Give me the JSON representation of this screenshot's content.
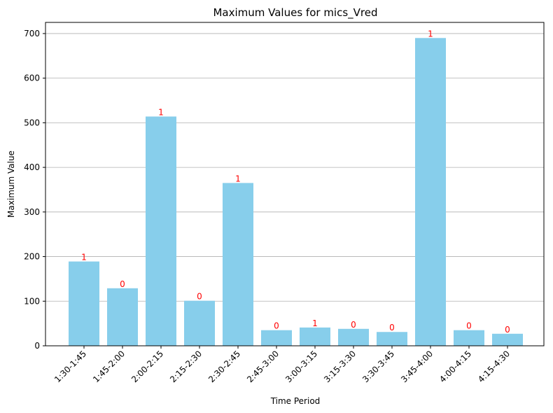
{
  "chart_data": {
    "type": "bar",
    "title": "Maximum Values for mics_Vred",
    "xlabel": "Time Period",
    "ylabel": "Maximum Value",
    "categories": [
      "1:30-1:45",
      "1:45-2:00",
      "2:00-2:15",
      "2:15-2:30",
      "2:30-2:45",
      "2:45-3:00",
      "3:00-3:15",
      "3:15-3:30",
      "3:30-3:45",
      "3:45-4:00",
      "4:00-4:15",
      "4:15-4:30"
    ],
    "values": [
      189,
      129,
      514,
      101,
      365,
      35,
      41,
      38,
      31,
      690,
      35,
      27
    ],
    "bar_labels": [
      "1",
      "0",
      "1",
      "0",
      "1",
      "0",
      "1",
      "0",
      "0",
      "1",
      "0",
      "0"
    ],
    "ylim": [
      0,
      725
    ],
    "yticks": [
      0,
      100,
      200,
      300,
      400,
      500,
      600,
      700
    ],
    "grid": "y",
    "bar_color": "#87ceeb",
    "label_color": "#ff0000"
  }
}
